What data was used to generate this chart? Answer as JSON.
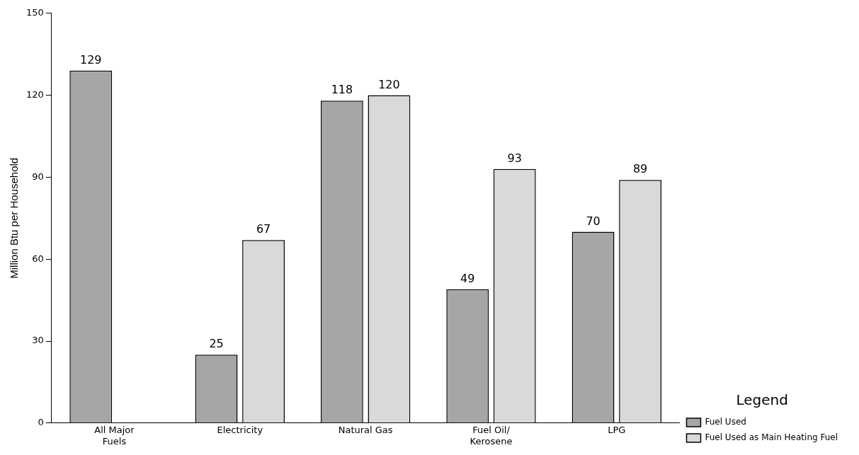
{
  "chart_data": {
    "type": "bar",
    "categories": [
      "All Major\nFuels",
      "Electricity",
      "Natural Gas",
      "Fuel Oil/\nKerosene",
      "LPG"
    ],
    "series": [
      {
        "name": "Fuel Used",
        "color": "#a6a6a6",
        "values": [
          129,
          25,
          118,
          49,
          70
        ]
      },
      {
        "name": "Fuel Used as Main Heating Fuel",
        "color": "#d9d9d9",
        "values": [
          null,
          67,
          120,
          93,
          89
        ]
      }
    ],
    "ylabel": "Million Btu per Household",
    "ylim": [
      0,
      150
    ],
    "yticks": [
      0,
      30,
      60,
      90,
      120,
      150
    ],
    "grid": false,
    "legend": "bottom right",
    "legend_title": "Legend",
    "data_labels": true
  }
}
